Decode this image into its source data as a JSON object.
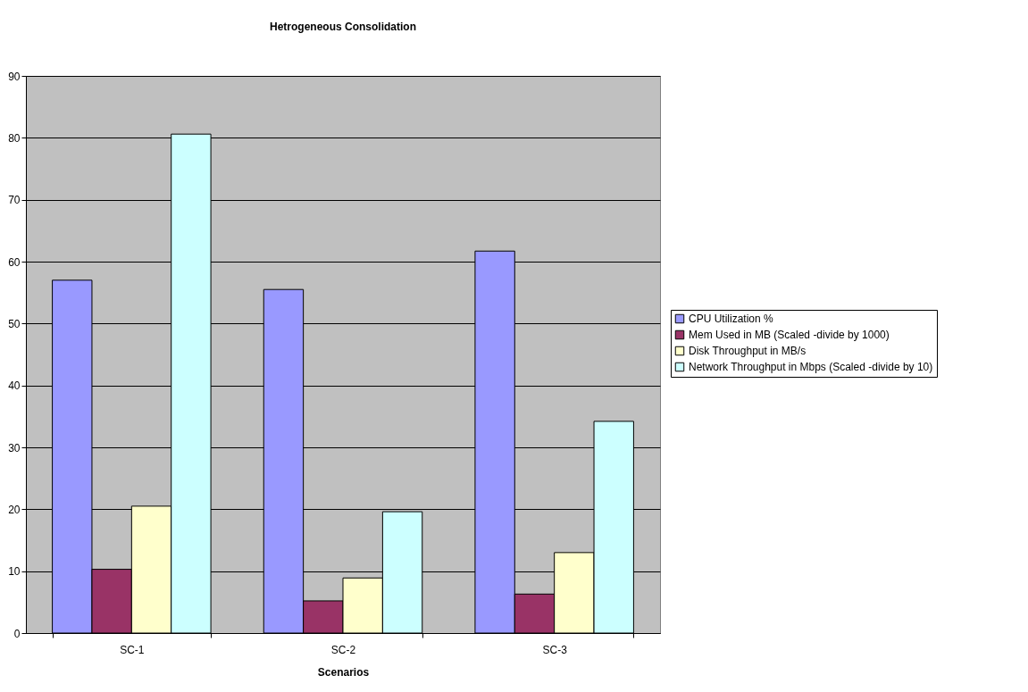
{
  "chart_data": {
    "type": "bar",
    "title": "Hetrogeneous Consolidation",
    "xlabel": "Scenarios",
    "categories": [
      "SC-1",
      "SC-2",
      "SC-3"
    ],
    "series": [
      {
        "name": "CPU Utilization %",
        "color": "#9999ff",
        "values": [
          57.0,
          55.5,
          61.7
        ]
      },
      {
        "name": "Mem Used in MB (Scaled -divide by 1000)",
        "color": "#993366",
        "values": [
          10.3,
          5.2,
          6.3
        ]
      },
      {
        "name": "Disk Throughput in MB/s",
        "color": "#ffffcc",
        "values": [
          20.5,
          8.9,
          13.0
        ]
      },
      {
        "name": "Network Throughput in Mbps (Scaled -divide by 10)",
        "color": "#ccffff",
        "values": [
          80.6,
          19.6,
          34.2
        ]
      }
    ],
    "ylim": [
      0,
      90
    ],
    "yticks": [
      0,
      10,
      20,
      30,
      40,
      50,
      60,
      70,
      80,
      90
    ],
    "grid": true,
    "legend": "right"
  }
}
